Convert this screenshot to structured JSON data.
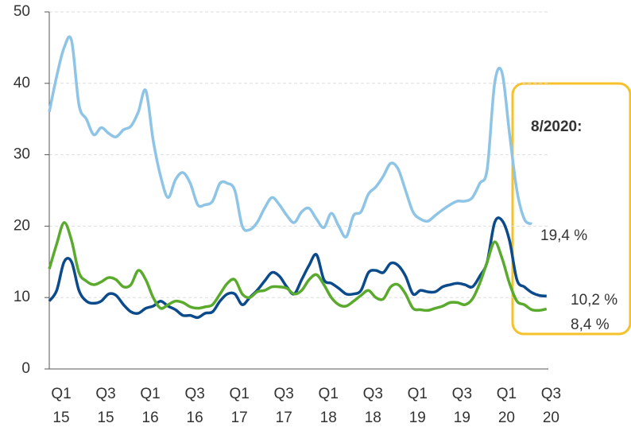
{
  "chart_data": {
    "type": "line",
    "categories": [
      "Q1 15",
      null,
      null,
      null,
      null,
      null,
      "Q3 15",
      null,
      null,
      null,
      null,
      null,
      "Q1 16",
      null,
      null,
      null,
      null,
      null,
      "Q3 16",
      null,
      null,
      null,
      null,
      null,
      "Q1 17",
      null,
      null,
      null,
      null,
      null,
      "Q3 17",
      null,
      null,
      null,
      null,
      null,
      "Q1 18",
      null,
      null,
      null,
      null,
      null,
      "Q3 18",
      null,
      null,
      null,
      null,
      null,
      "Q1 19",
      null,
      null,
      null,
      null,
      null,
      "Q3 19",
      null,
      null,
      null,
      null,
      null,
      "Q1 20",
      null,
      null,
      null,
      null,
      null,
      "Q3 20",
      null
    ],
    "series": [
      {
        "color": "#8ec4e6",
        "values": [
          36,
          41,
          45,
          46,
          37,
          35,
          32.8,
          33.8,
          33,
          32.5,
          33.5,
          34,
          36,
          39,
          32,
          27,
          24,
          26.5,
          27.5,
          26,
          23,
          23,
          23.5,
          26,
          26,
          25,
          20,
          19.5,
          20.5,
          22.5,
          24,
          23,
          21.5,
          20.5,
          22,
          22.5,
          21,
          19.8,
          21.8,
          20,
          18.5,
          21.5,
          22,
          24.5,
          25.5,
          27,
          28.8,
          28,
          25,
          22,
          21,
          20.7,
          21.5,
          22.3,
          23,
          23.5,
          23.5,
          24,
          26,
          28,
          40,
          41.5,
          33,
          25,
          21,
          20.3,
          null,
          null
        ]
      },
      {
        "color": "#0b4a8b",
        "values": [
          9.5,
          11,
          15,
          15,
          11,
          9.5,
          9.2,
          9.5,
          10.5,
          10.3,
          9,
          8,
          7.8,
          8.5,
          8.8,
          9.5,
          8.8,
          8.3,
          7.5,
          7.5,
          7.2,
          7.8,
          8,
          9.5,
          10.5,
          10.5,
          9,
          10,
          11,
          12.3,
          13.5,
          13,
          11.5,
          10.5,
          12.5,
          14.5,
          16,
          12.5,
          12,
          11.3,
          10.5,
          10.5,
          11,
          13.5,
          13.8,
          13.5,
          14.8,
          14.5,
          13,
          10.5,
          11,
          10.8,
          10.8,
          11.5,
          11.8,
          12,
          11.8,
          11.5,
          13,
          15,
          20.5,
          20.8,
          18,
          12.5,
          11.5,
          10.7,
          10.3,
          10.2
        ]
      },
      {
        "color": "#5aaa2e",
        "values": [
          14,
          17.5,
          20.5,
          18,
          13.5,
          12.3,
          11.8,
          12.2,
          12.8,
          12.5,
          11.5,
          11.8,
          13.8,
          12.5,
          10,
          8.5,
          9,
          9.5,
          9.3,
          8.7,
          8.5,
          8.7,
          9,
          10.5,
          12,
          12.5,
          10.5,
          10,
          10.8,
          11,
          11.5,
          11.5,
          11.3,
          10.5,
          11,
          12.5,
          13.2,
          11.8,
          10,
          9,
          8.8,
          9.5,
          10.3,
          11,
          10,
          9.8,
          11.5,
          11.8,
          10.5,
          8.5,
          8.3,
          8.2,
          8.5,
          8.8,
          9.3,
          9.3,
          9,
          9.8,
          12,
          15,
          17.8,
          15.5,
          12,
          9.5,
          9,
          8.3,
          8.2,
          8.4
        ]
      }
    ],
    "ylim": [
      0,
      50
    ],
    "yticks": [
      0,
      10,
      20,
      30,
      40,
      50
    ],
    "grid": true,
    "annotations": [
      "8/2020:",
      "19,4 %",
      "10,2 %",
      "8,4 %"
    ]
  }
}
